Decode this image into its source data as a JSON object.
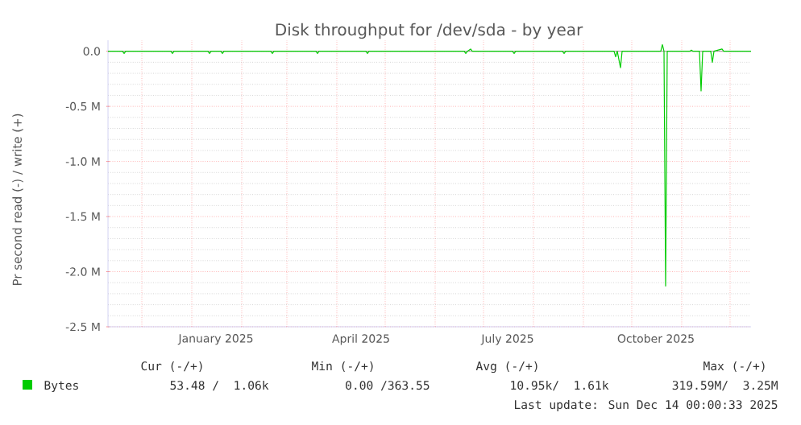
{
  "chart_data": {
    "type": "line",
    "title": "Disk throughput for /dev/sda - by year",
    "ylabel": "Pr second read (-) / write (+)",
    "x": [
      "2024-11-10",
      "2024-11-19",
      "2024-11-20",
      "2024-11-21",
      "2024-12-19",
      "2024-12-20",
      "2024-12-21",
      "2025-01-11",
      "2025-01-12",
      "2025-01-13",
      "2025-01-19",
      "2025-01-20",
      "2025-01-21",
      "2025-02-19",
      "2025-02-20",
      "2025-02-21",
      "2025-03-19",
      "2025-03-20",
      "2025-03-21",
      "2025-04-19",
      "2025-04-20",
      "2025-04-21",
      "2025-06-19",
      "2025-06-20",
      "2025-06-21",
      "2025-06-23",
      "2025-06-24",
      "2025-07-19",
      "2025-07-20",
      "2025-07-21",
      "2025-08-19",
      "2025-08-20",
      "2025-08-21",
      "2025-09-20",
      "2025-09-21",
      "2025-09-22",
      "2025-09-24",
      "2025-09-25",
      "2025-10-19",
      "2025-10-20",
      "2025-10-21",
      "2025-10-22",
      "2025-10-23",
      "2025-11-06",
      "2025-11-07",
      "2025-11-08",
      "2025-11-12",
      "2025-11-13",
      "2025-11-14",
      "2025-11-19",
      "2025-11-20",
      "2025-11-21",
      "2025-11-26",
      "2025-11-27",
      "2025-12-14"
    ],
    "series": [
      {
        "name": "Bytes",
        "color": "#00cc00",
        "values": [
          0,
          0,
          -0.02,
          0,
          0,
          -0.02,
          0,
          0,
          -0.02,
          0,
          0,
          -0.02,
          0,
          0,
          -0.02,
          0,
          0,
          -0.02,
          0,
          0,
          -0.02,
          0,
          0,
          -0.02,
          0,
          0.02,
          0,
          0,
          -0.02,
          0,
          0,
          -0.02,
          0,
          0,
          -0.05,
          0,
          -0.15,
          0,
          0,
          0.06,
          0,
          -2.13,
          0,
          0,
          0.01,
          0,
          0,
          -0.36,
          0,
          0,
          -0.1,
          0,
          0.02,
          0,
          0
        ]
      }
    ],
    "xlim": [
      "2024-11-10",
      "2025-12-14"
    ],
    "xticks": [
      {
        "value": "2024-12-01",
        "label": null
      },
      {
        "value": "2025-01-01",
        "label": null
      },
      {
        "value": "2025-01-16",
        "label": "January 2025"
      },
      {
        "value": "2025-02-01",
        "label": null
      },
      {
        "value": "2025-03-01",
        "label": null
      },
      {
        "value": "2025-04-01",
        "label": null
      },
      {
        "value": "2025-04-16",
        "label": "April 2025"
      },
      {
        "value": "2025-05-01",
        "label": null
      },
      {
        "value": "2025-06-01",
        "label": null
      },
      {
        "value": "2025-07-01",
        "label": null
      },
      {
        "value": "2025-07-16",
        "label": "July 2025"
      },
      {
        "value": "2025-08-01",
        "label": null
      },
      {
        "value": "2025-09-01",
        "label": null
      },
      {
        "value": "2025-10-01",
        "label": null
      },
      {
        "value": "2025-10-16",
        "label": "October 2025"
      },
      {
        "value": "2025-11-01",
        "label": null
      },
      {
        "value": "2025-12-01",
        "label": null
      }
    ],
    "ylim": [
      -2.5,
      0.1
    ],
    "yticks": [
      {
        "value": -2.5,
        "label": "-2.5 M"
      },
      {
        "value": -2.0,
        "label": "-2.0 M"
      },
      {
        "value": -1.5,
        "label": "-1.5 M"
      },
      {
        "value": -1.0,
        "label": "-1.0 M"
      },
      {
        "value": -0.5,
        "label": "-0.5 M"
      },
      {
        "value": 0,
        "label": "0.0"
      }
    ],
    "ref_lines": [
      {
        "axis": "y",
        "value": 0,
        "color": "#000000"
      }
    ],
    "grid": true,
    "legend": "bottom left",
    "marker": "none",
    "line_style": "solid",
    "annotations": [
      "Cur (-/+)",
      "Min (-/+)",
      "Avg (-/+)",
      "Max (-/+)",
      "53.48 /  1.06k",
      "0.00 /363.55",
      "10.95k/  1.61k",
      "319.59M/  3.25M",
      "Last update: Sun Dec 14 00:00:33 2025"
    ]
  }
}
